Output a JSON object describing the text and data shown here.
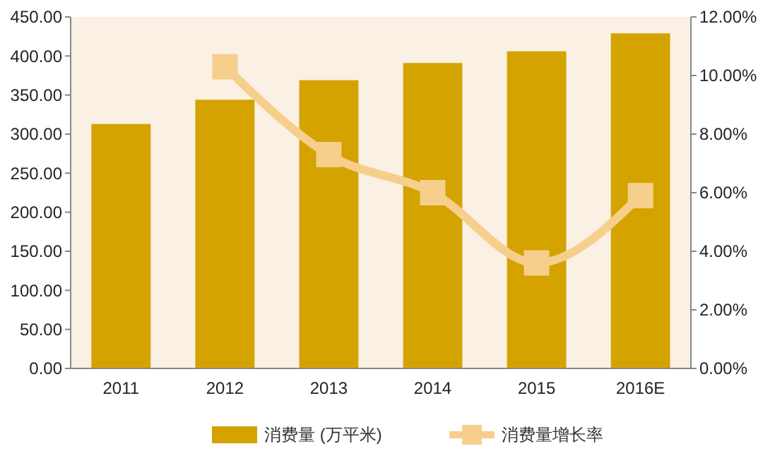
{
  "chart_data": {
    "type": "bar",
    "categories": [
      "2011",
      "2012",
      "2013",
      "2014",
      "2015",
      "2016E"
    ],
    "series": [
      {
        "name": "消费量 (万平米)",
        "color": "#d4a300",
        "values": [
          313,
          344,
          369,
          391,
          406,
          429
        ]
      },
      {
        "name": "消费量增长率",
        "type": "line",
        "axis": "y2",
        "color": "#f6cf8c",
        "values": [
          null,
          10.3,
          7.3,
          6.0,
          3.6,
          5.9
        ],
        "marker": "square"
      }
    ],
    "ylim": [
      0,
      450
    ],
    "yticks": [
      {
        "value": 0,
        "label": "0.00"
      },
      {
        "value": 50,
        "label": "50.00"
      },
      {
        "value": 100,
        "label": "100.00"
      },
      {
        "value": 150,
        "label": "150.00"
      },
      {
        "value": 200,
        "label": "200.00"
      },
      {
        "value": 250,
        "label": "250.00"
      },
      {
        "value": 300,
        "label": "300.00"
      },
      {
        "value": 350,
        "label": "350.00"
      },
      {
        "value": 400,
        "label": "400.00"
      },
      {
        "value": 450,
        "label": "450.00"
      }
    ],
    "y2lim": [
      0,
      12
    ],
    "y2ticks": [
      {
        "value": 0,
        "label": "0.00%"
      },
      {
        "value": 2,
        "label": "2.00%"
      },
      {
        "value": 4,
        "label": "4.00%"
      },
      {
        "value": 6,
        "label": "6.00%"
      },
      {
        "value": 8,
        "label": "8.00%"
      },
      {
        "value": 10,
        "label": "10.00%"
      },
      {
        "value": 12,
        "label": "12.00%"
      }
    ],
    "legend": "bottom",
    "grid": false
  }
}
